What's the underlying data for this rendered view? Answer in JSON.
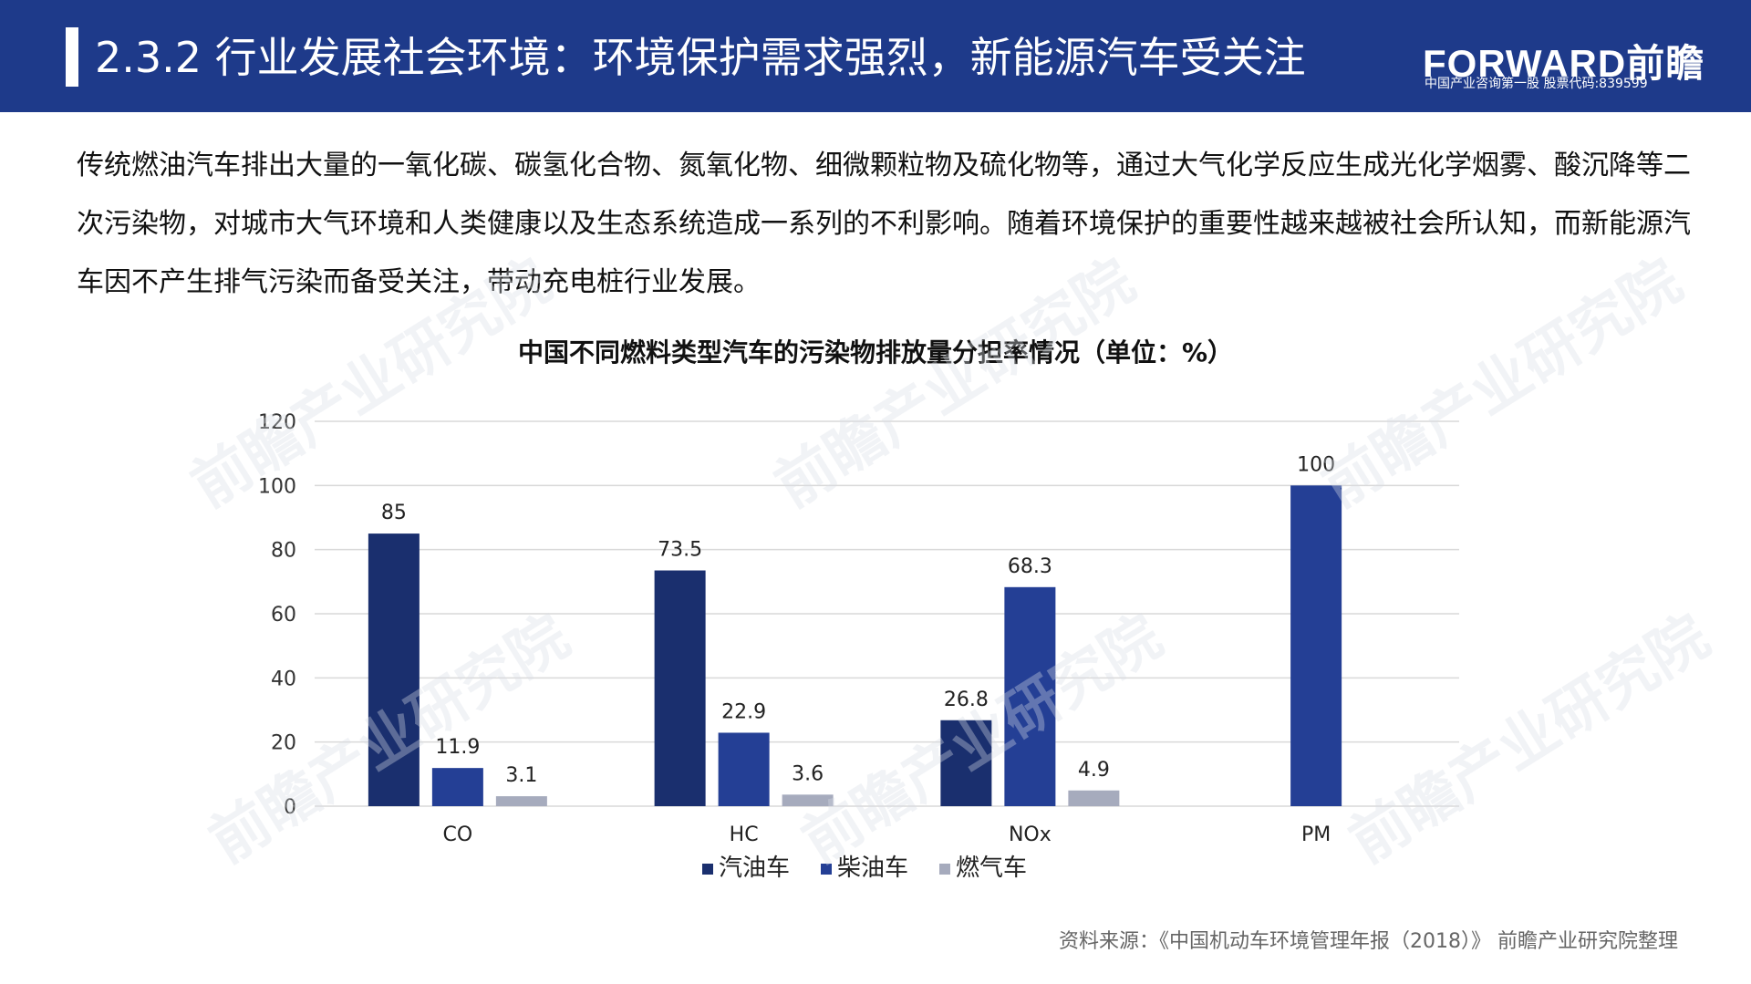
{
  "header": {
    "title": "2.3.2 行业发展社会环境：环境保护需求强烈，新能源汽车受关注",
    "logo_main": "FORWARD前瞻",
    "logo_sub": "中国产业咨询第一股  股票代码:839599"
  },
  "intro_text": "传统燃油汽车排出大量的一氧化碳、碳氢化合物、氮氧化物、细微颗粒物及硫化物等，通过大气化学反应生成光化学烟雾、酸沉降等二次污染物，对城市大气环境和人类健康以及生态系统造成一系列的不利影响。随着环境保护的重要性越来越被社会所认知，而新能源汽车因不产生排气污染而备受关注，带动充电桩行业发展。",
  "watermark_text": "前瞻产业研究院",
  "source": "资料来源：《中国机动车环境管理年报（2018）》  前瞻产业研究院整理",
  "colors": {
    "header_bg": "#1e3a8a",
    "gasoline": "#1a2f6e",
    "diesel": "#243f95",
    "gas": "#a6abbd",
    "grid": "#d9d9d9"
  },
  "chart_data": {
    "type": "bar",
    "title": "中国不同燃料类型汽车的污染物排放量分担率情况（单位：%）",
    "categories": [
      "CO",
      "HC",
      "NOx",
      "PM"
    ],
    "series": [
      {
        "name": "汽油车",
        "values": [
          85,
          73.5,
          26.8,
          null
        ],
        "labels": [
          "85",
          "73.5",
          "26.8",
          ""
        ]
      },
      {
        "name": "柴油车",
        "values": [
          11.9,
          22.9,
          68.3,
          100
        ],
        "labels": [
          "11.9",
          "22.9",
          "68.3",
          "100"
        ]
      },
      {
        "name": "燃气车",
        "values": [
          3.1,
          3.6,
          4.9,
          null
        ],
        "labels": [
          "3.1",
          "3.6",
          "4.9",
          ""
        ]
      }
    ],
    "ylim": [
      0,
      120
    ],
    "yticks": [
      "0",
      "20",
      "40",
      "60",
      "80",
      "100",
      "120"
    ],
    "grid": true,
    "legend": "bottom"
  }
}
